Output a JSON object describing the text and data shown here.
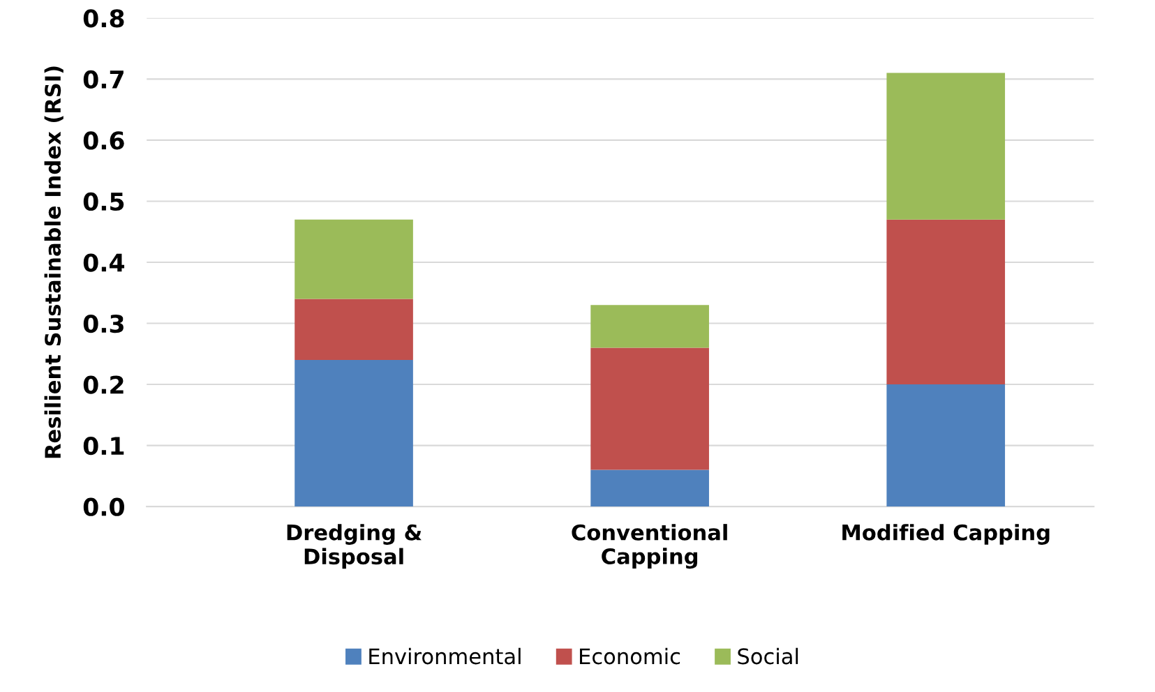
{
  "chart_data": {
    "type": "bar",
    "stacked": true,
    "ylabel": "Resilient Sustainable Index (RSI)",
    "categories": [
      "Dredging &\nDisposal",
      "Conventional\nCapping",
      "Modified Capping"
    ],
    "series": [
      {
        "name": "Environmental",
        "color": "#4f81bd",
        "values": [
          0.24,
          0.06,
          0.2
        ]
      },
      {
        "name": "Economic",
        "color": "#c0504d",
        "values": [
          0.1,
          0.2,
          0.27
        ]
      },
      {
        "name": "Social",
        "color": "#9bbb59",
        "values": [
          0.13,
          0.07,
          0.24
        ]
      }
    ],
    "ylim": [
      0,
      0.8
    ],
    "yticks": [
      {
        "value": 0,
        "label": "0.0"
      },
      0.1,
      0.2,
      0.3,
      0.4,
      0.5,
      0.6,
      0.7,
      0.8
    ],
    "grid": "y",
    "legend": "bottom"
  }
}
